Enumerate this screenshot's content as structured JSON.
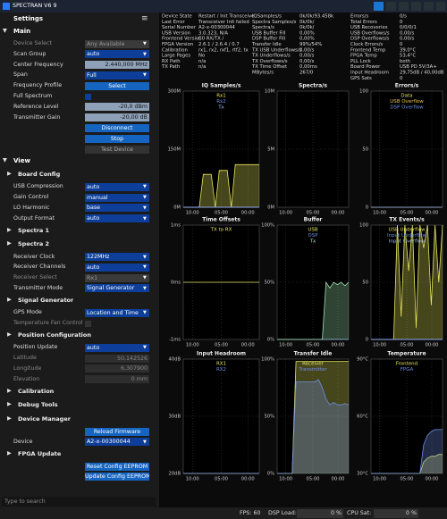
{
  "app": {
    "title": "SPECTRAN V6 9",
    "settings_title": "Settings",
    "settings": [
      {
        "section": "Main"
      },
      {
        "label": "Device Select",
        "select": "Any Available",
        "disabled": true
      },
      {
        "label": "Scan Group",
        "select": "auto"
      },
      {
        "label": "Center Frequency",
        "input": "2.440,000 MHz"
      },
      {
        "label": "Span",
        "select": "Full"
      },
      {
        "label": "Frequency Profile",
        "button": "Select"
      },
      {
        "label": "Full Spectrum",
        "check": false
      },
      {
        "label": "Reference Level",
        "input": "-20,0 dBm"
      },
      {
        "label": "Transmitter Gain",
        "input": "-20,00 dB"
      },
      {
        "button": "Disconnect"
      },
      {
        "button": "Stop"
      },
      {
        "button": "Test Device",
        "disabled": true
      },
      {
        "section": "View"
      },
      {
        "group": "Board Config"
      },
      {
        "label": "USB Compression",
        "select": "auto"
      },
      {
        "label": "Gain Control",
        "select": "manual"
      },
      {
        "label": "LO Harmonic",
        "select": "base"
      },
      {
        "label": "Output Format",
        "select": "auto"
      },
      {
        "group": "Spectra 1"
      },
      {
        "group": "Spectra 2"
      },
      {
        "label": "Receiver Clock",
        "select": "122MHz"
      },
      {
        "label": "Receiver Channels",
        "select": "auto"
      },
      {
        "label": "Receiver Select",
        "select": "Rx1",
        "disabled": true
      },
      {
        "label": "Transmitter Mode",
        "select": "Signal Generator"
      },
      {
        "group": "Signal Generator"
      },
      {
        "label": "GPS Mode",
        "select": "Location and Time"
      },
      {
        "label": "Temperature Fan Control",
        "check": false,
        "disabled": true
      },
      {
        "group": "Position Configuration"
      },
      {
        "label": "Position Update",
        "select": "auto"
      },
      {
        "label": "Latitude",
        "input": "50,142526",
        "disabled": true
      },
      {
        "label": "Longitude",
        "input": "6,307900",
        "disabled": true
      },
      {
        "label": "Elevation",
        "input": "0 mm",
        "disabled": true
      },
      {
        "group": "Calibration"
      },
      {
        "group": "Debug Tools"
      },
      {
        "group": "Device Manager"
      },
      {
        "button": "Reload Firmware"
      },
      {
        "label": "Device",
        "select": "A2-x-00300044"
      },
      {
        "group": "FPGA Update"
      },
      {
        "button": "Reset Config EEPROM"
      },
      {
        "button": "Update Config EEPROM"
      }
    ],
    "search_placeholder": "Type to search",
    "status": [
      [
        [
          "Device State",
          "Restart / Init Transceive"
        ],
        [
          "Last Error",
          "Transceiver Init failed"
        ],
        [
          "Serial Number",
          "A2-x-00300044"
        ],
        [
          "USB Version",
          "3.0.323, N/A"
        ],
        [
          "Frontend Version",
          "C0 RX/TX /"
        ],
        [
          "FPGA Version",
          "2.6.1 / 2.6.4 / 0.7"
        ],
        [
          "Calibration",
          "rx1, rx2, rxf1, rtf2, tx"
        ],
        [
          "Large Pages",
          "No"
        ],
        [
          "RX Path",
          "n/a"
        ],
        [
          "TX Path",
          "n/a"
        ]
      ],
      [
        [
          "IQSamples/s",
          "0k/0k/93.458k"
        ],
        [
          "Spectra Samples/s",
          "0k/0k/"
        ],
        [
          "Spectra/s",
          "0k/0k/"
        ],
        [
          "USB Buffer Fill",
          "0,00%"
        ],
        [
          "DSP Buffer Fill",
          "0,00%"
        ],
        [
          "Transfer Idle",
          "99%/54%"
        ],
        [
          "TX USB Underflows/s",
          "0,00/s"
        ],
        [
          "TX Underflows/s",
          "0,00/s"
        ],
        [
          "TX Overflows/s",
          "0,00/s"
        ],
        [
          "TX Time Offset",
          "0,00ms"
        ],
        [
          "MBytes/s",
          "267/0"
        ]
      ],
      [
        [
          "Errors/s",
          "0/s"
        ],
        [
          "Total Errors",
          "0"
        ],
        [
          "USB Recoveries",
          "0/0/0/1"
        ],
        [
          "USB Overflows/s",
          "0,00/s"
        ],
        [
          "DSP Overflows/s",
          "0,00/s"
        ],
        [
          "Clock Errors/s",
          "0"
        ],
        [
          "Frontend Temp",
          "39,0°C"
        ],
        [
          "FPGA Temp",
          "53,4°C"
        ],
        [
          "PLL Lock",
          "both"
        ],
        [
          "Board Power",
          "USB PD 5V/3A+"
        ],
        [
          "Input Headroom",
          "29,75dB / 40,00dB"
        ],
        [
          "GPS Sats",
          "0"
        ]
      ]
    ],
    "footer": {
      "fps": "FPS: 60",
      "dsp_label": "DSP Load:",
      "dsp_value": "0 %",
      "cpu_label": "CPU Sat:",
      "cpu_value": "0 %"
    }
  },
  "chart_data": [
    {
      "type": "line",
      "title": "IQ Samples/s",
      "ylim": [
        0,
        300
      ],
      "yticks": [
        {
          "value": 300,
          "label": "300M"
        },
        {
          "value": 150,
          "label": "150M"
        },
        {
          "value": 0,
          "label": "0M"
        }
      ],
      "x_tick_labels": [
        "10:00",
        "05:00",
        "00:00"
      ],
      "series": [
        {
          "name": "Rx1",
          "color": "#e8e860",
          "values": [
            0,
            0,
            0,
            0,
            0,
            85,
            85,
            85,
            0,
            95,
            95,
            95,
            0,
            110,
            110,
            110,
            110,
            110,
            110,
            110
          ]
        },
        {
          "name": "Rx2",
          "color": "#6f8fe8",
          "values": [
            0,
            0
          ]
        },
        {
          "name": "Tx",
          "color": "#9fb7ff",
          "values": [
            0,
            0
          ]
        }
      ]
    },
    {
      "type": "line",
      "title": "Spectra/s",
      "ylim": [
        0,
        10
      ],
      "yticks": [
        {
          "value": 10,
          "label": "10M"
        },
        {
          "value": 5,
          "label": "5M"
        },
        {
          "value": 0,
          "label": "0M"
        }
      ],
      "x_tick_labels": [
        "10:00",
        "05:00",
        "00:00"
      ],
      "series": []
    },
    {
      "type": "line",
      "title": "Errors/s",
      "ylim": [
        0,
        100
      ],
      "yticks": [
        100,
        50,
        0
      ],
      "x_tick_labels": [
        "10:00",
        "05:00",
        "00:00"
      ],
      "series": [
        {
          "name": "Data",
          "color": "#e8e860",
          "values": [
            0,
            0
          ]
        },
        {
          "name": "USB Overflow",
          "color": "#e8c040",
          "values": [
            0,
            0
          ]
        },
        {
          "name": "DSP Overflow",
          "color": "#6f8fe8",
          "values": [
            0,
            0
          ]
        }
      ]
    },
    {
      "type": "line",
      "title": "Time Offsets",
      "ylim": [
        -1,
        1
      ],
      "yticks": [
        {
          "value": 1,
          "label": "1ms"
        },
        {
          "value": 0,
          "label": "0ms"
        },
        {
          "value": -1,
          "label": "-1ms"
        }
      ],
      "x_tick_labels": [
        "10:00",
        "05:00",
        "00:00"
      ],
      "series": [
        {
          "name": "TX to RX",
          "color": "#e8e860",
          "values": [
            0,
            0
          ]
        }
      ]
    },
    {
      "type": "line",
      "title": "Buffer",
      "ylim": [
        0,
        100
      ],
      "yticks": [
        {
          "value": 100,
          "label": "100%"
        },
        {
          "value": 50,
          "label": "50%"
        },
        {
          "value": 0,
          "label": "0%"
        }
      ],
      "x_tick_labels": [
        "10:00",
        "05:00",
        "00:00"
      ],
      "series": [
        {
          "name": "USB",
          "color": "#e8e860",
          "values": [
            0,
            0
          ]
        },
        {
          "name": "DSP",
          "color": "#6f8fe8",
          "values": [
            0,
            0
          ]
        },
        {
          "name": "Tx",
          "color": "#9fe0b0",
          "values": [
            0,
            0,
            0,
            0,
            0,
            0,
            0,
            0,
            0,
            0,
            0,
            0,
            0,
            50,
            45,
            50,
            48,
            50,
            47,
            50
          ]
        }
      ]
    },
    {
      "type": "line",
      "title": "TX Events/s",
      "ylim": [
        0,
        100
      ],
      "yticks": [
        100,
        50,
        0
      ],
      "x_tick_labels": [
        "10:00",
        "05:00",
        "00:00"
      ],
      "series": [
        {
          "name": "USB Underflow",
          "color": "#e8e860",
          "values": [
            0,
            0,
            0,
            0,
            0,
            0,
            0,
            100,
            20,
            100,
            60,
            100,
            10,
            100,
            80,
            100,
            30,
            100,
            50,
            100
          ]
        },
        {
          "name": "Input Underflow",
          "color": "#6f8fe8",
          "values": [
            0,
            0
          ]
        },
        {
          "name": "Input Overflow",
          "color": "#9fb7ff",
          "values": [
            0,
            0
          ]
        }
      ]
    },
    {
      "type": "line",
      "title": "Input Headroom",
      "ylim": [
        20,
        40
      ],
      "yticks": [
        {
          "value": 40,
          "label": "40dB"
        },
        {
          "value": 30,
          "label": "30dB"
        },
        {
          "value": 20,
          "label": "20dB"
        }
      ],
      "x_tick_labels": [
        "10:00",
        "05:00",
        "00:00"
      ],
      "series": [
        {
          "name": "RX1",
          "color": "#e8e860",
          "values": [
            20,
            20
          ]
        },
        {
          "name": "RX2",
          "color": "#6f8fe8",
          "values": [
            20,
            20
          ]
        }
      ]
    },
    {
      "type": "line",
      "title": "Transfer Idle",
      "ylim": [
        0,
        100
      ],
      "yticks": [
        {
          "value": 100,
          "label": "100%"
        },
        {
          "value": 50,
          "label": "50%"
        },
        {
          "value": 0,
          "label": "0%"
        }
      ],
      "x_tick_labels": [
        "10:00",
        "05:00",
        "00:00"
      ],
      "series": [
        {
          "name": "Receiver",
          "color": "#e8e860",
          "values": [
            0,
            0,
            0,
            0,
            0,
            98,
            98,
            98,
            98,
            98,
            98,
            98,
            98,
            98,
            98,
            98,
            98,
            98,
            98,
            98
          ]
        },
        {
          "name": "Transmitter",
          "color": "#6f8fe8",
          "values": [
            0,
            0,
            0,
            0,
            0,
            80,
            80,
            80,
            80,
            80,
            80,
            82,
            75,
            65,
            60,
            62,
            60,
            60,
            61,
            60
          ]
        }
      ]
    },
    {
      "type": "line",
      "title": "Temperature",
      "ylim": [
        30,
        90
      ],
      "yticks": [
        {
          "value": 90,
          "label": "90°C"
        },
        {
          "value": 60,
          "label": "60°C"
        },
        {
          "value": 30,
          "label": "30°C"
        }
      ],
      "x_tick_labels": [
        "10:00",
        "05:00",
        "00:00"
      ],
      "series": [
        {
          "name": "Frontend",
          "color": "#e8e860",
          "values": [
            30,
            30,
            30,
            30,
            30,
            30,
            30,
            30,
            30,
            30,
            30,
            30,
            30,
            30,
            36,
            38,
            39,
            39,
            40,
            40
          ]
        },
        {
          "name": "FPGA",
          "color": "#6f8fe8",
          "values": [
            30,
            30,
            30,
            30,
            30,
            30,
            30,
            30,
            30,
            30,
            30,
            30,
            30,
            30,
            45,
            50,
            52,
            53,
            53,
            53
          ]
        }
      ]
    }
  ]
}
